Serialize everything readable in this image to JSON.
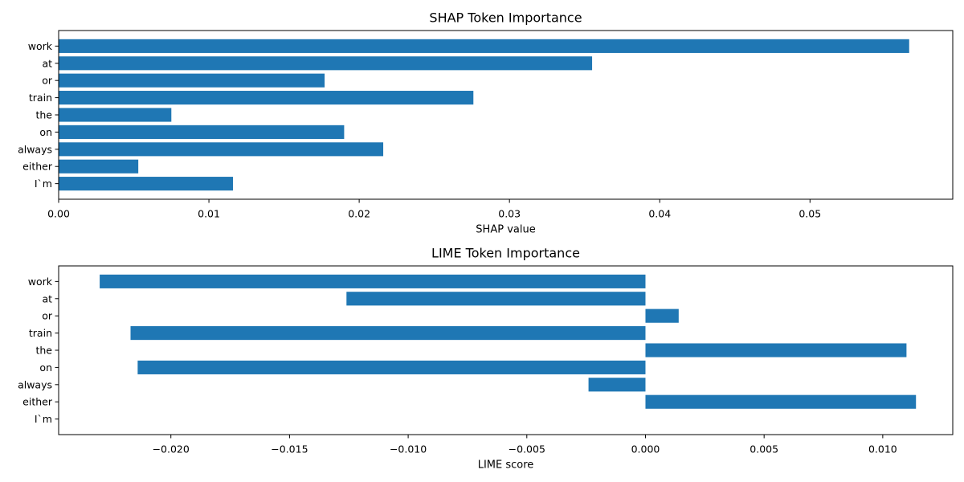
{
  "chart_data": [
    {
      "type": "bar",
      "orientation": "horizontal",
      "title": "SHAP Token Importance",
      "xlabel": "SHAP value",
      "ylabel": "",
      "grid": false,
      "bar_color": "#1f77b4",
      "categories": [
        "work",
        "at",
        "or",
        "train",
        "the",
        "on",
        "always",
        "either",
        "I`m"
      ],
      "values": [
        0.0566,
        0.0355,
        0.0177,
        0.0276,
        0.0075,
        0.019,
        0.0216,
        0.0053,
        0.0116
      ],
      "xlim": [
        0,
        0.0595
      ],
      "xticks": [
        0.0,
        0.01,
        0.02,
        0.03,
        0.04,
        0.05
      ],
      "xtick_labels": [
        "0.00",
        "0.01",
        "0.02",
        "0.03",
        "0.04",
        "0.05"
      ]
    },
    {
      "type": "bar",
      "orientation": "horizontal",
      "title": "LIME Token Importance",
      "xlabel": "LIME score",
      "ylabel": "",
      "grid": false,
      "bar_color": "#1f77b4",
      "categories": [
        "work",
        "at",
        "or",
        "train",
        "the",
        "on",
        "always",
        "either",
        "I`m"
      ],
      "values": [
        -0.023,
        -0.0126,
        0.0014,
        -0.0217,
        0.011,
        -0.0214,
        -0.0024,
        0.0114,
        0.0
      ],
      "xlim": [
        -0.02473,
        0.01295
      ],
      "xticks": [
        -0.02,
        -0.015,
        -0.01,
        -0.005,
        0.0,
        0.005,
        0.01
      ],
      "xtick_labels": [
        "−0.020",
        "−0.015",
        "−0.010",
        "−0.005",
        "0.000",
        "0.005",
        "0.010"
      ]
    }
  ]
}
